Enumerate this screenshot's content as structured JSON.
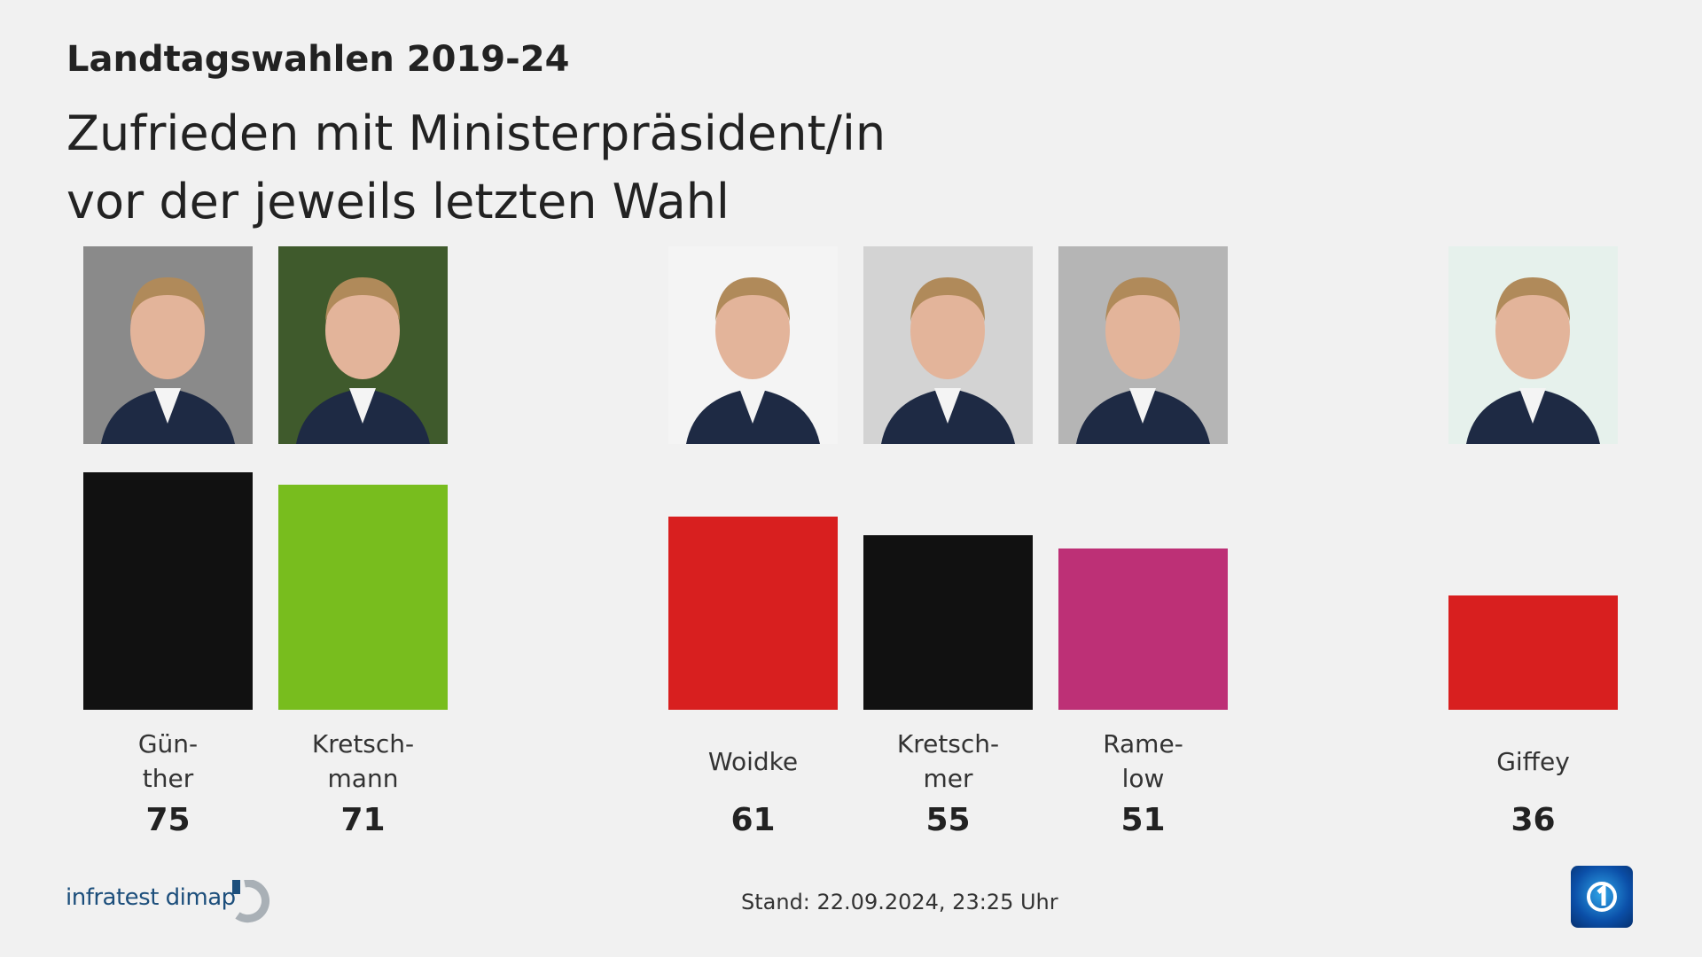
{
  "header": {
    "title": "Landtagswahlen 2019-24",
    "subtitle_line1": "Zufrieden mit Ministerpräsident/in",
    "subtitle_line2": "vor der jeweils letzten Wahl"
  },
  "chart_data": {
    "type": "bar",
    "title": "Landtagswahlen 2019-24",
    "subtitle": "Zufrieden mit Ministerpräsident/in vor der jeweils letzten Wahl",
    "categories": [
      "Günther",
      "Kretschmann",
      "Woidke",
      "Kretschmer",
      "Ramelow",
      "Giffey"
    ],
    "labels": [
      [
        "Gün-",
        "ther"
      ],
      [
        "Kretsch-",
        "mann"
      ],
      [
        "Woidke"
      ],
      [
        "Kretsch-",
        "mer"
      ],
      [
        "Rame-",
        "low"
      ],
      [
        "Giffey"
      ]
    ],
    "values": [
      75,
      71,
      61,
      55,
      51,
      36
    ],
    "value_labels": [
      "75",
      "71",
      "61",
      "55",
      "51",
      "36"
    ],
    "colors": [
      "#111111",
      "#78bd1e",
      "#d81f1f",
      "#111111",
      "#bd3076",
      "#d81f1f"
    ],
    "photo_backgrounds": [
      "#8a8a8a",
      "#3f5a2c",
      "#f4f4f4",
      "#d3d3d3",
      "#b5b5b5",
      "#e6f1ec"
    ],
    "ylim": [
      0,
      100
    ],
    "grid": false,
    "legend": "none"
  },
  "footer": {
    "source": "infratest dimap",
    "stand": "Stand:  22.09.2024, 23:25 Uhr",
    "broadcaster_icon": "ard-logo-icon"
  }
}
